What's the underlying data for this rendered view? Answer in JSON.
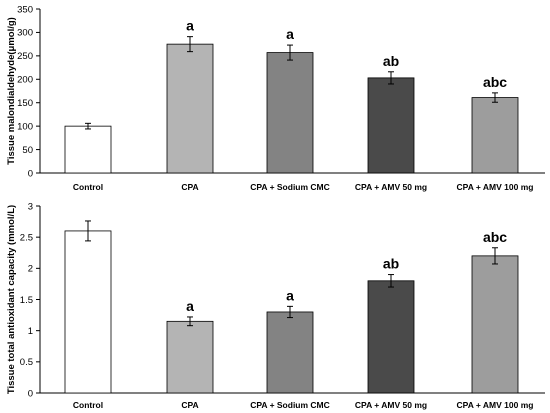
{
  "chart_data": [
    {
      "type": "bar",
      "ylabel": "Tissue malondialdehyde(μmol/g)",
      "ylim": [
        0,
        350
      ],
      "yticks": [
        "0",
        "50",
        "100",
        "150",
        "200",
        "250",
        "300",
        "350"
      ],
      "categories": [
        "Control",
        "CPA",
        "CPA + Sodium CMC",
        "CPA + AMV 50 mg",
        "CPA + AMV 100 mg"
      ],
      "values": [
        100,
        275,
        257,
        203,
        161
      ],
      "errors": [
        6,
        16,
        16,
        13,
        10
      ],
      "bar_colors": [
        "#ffffff",
        "#b4b4b4",
        "#838383",
        "#4a4a4a",
        "#9d9d9d"
      ],
      "annotations": [
        "",
        "a",
        "a",
        "ab",
        "abc"
      ],
      "grid": false
    },
    {
      "type": "bar",
      "ylabel": "Tissue total antioxidant capacity (mmol/L)",
      "ylim": [
        0,
        3
      ],
      "yticks": [
        "0",
        "0.5",
        "1",
        "1.5",
        "2",
        "2.5",
        "3"
      ],
      "categories": [
        "Control",
        "CPA",
        "CPA + Sodium CMC",
        "CPA + AMV 50 mg",
        "CPA + AMV 100 mg"
      ],
      "values": [
        2.6,
        1.15,
        1.3,
        1.8,
        2.2
      ],
      "errors": [
        0.16,
        0.07,
        0.09,
        0.1,
        0.13
      ],
      "bar_colors": [
        "#ffffff",
        "#b4b4b4",
        "#838383",
        "#4a4a4a",
        "#9d9d9d"
      ],
      "annotations": [
        "",
        "a",
        "a",
        "ab",
        "abc"
      ],
      "grid": false
    }
  ]
}
